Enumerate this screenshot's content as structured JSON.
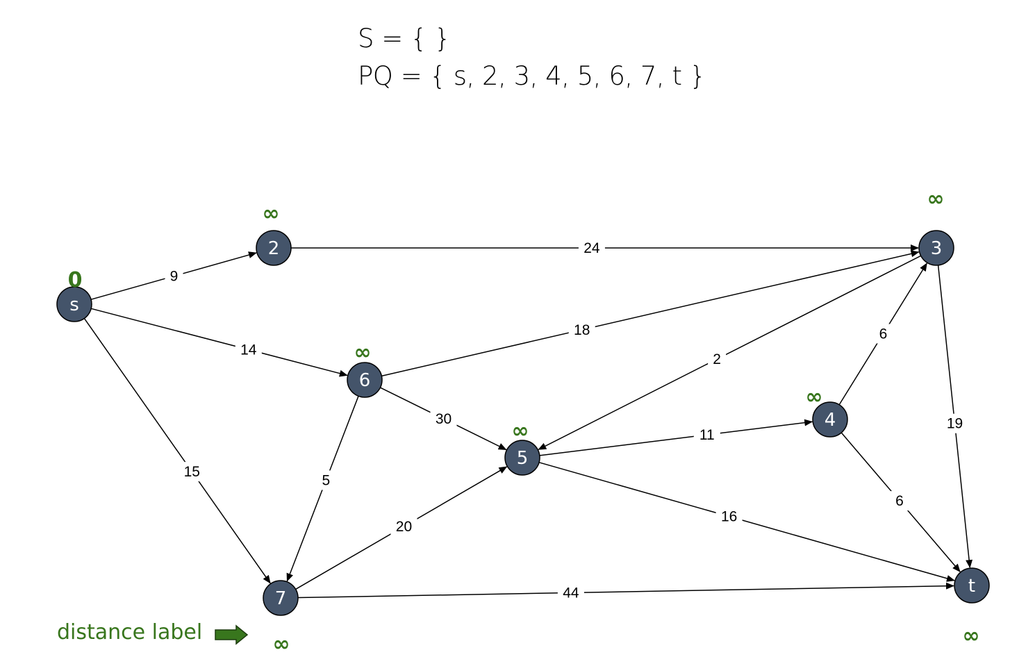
{
  "header": {
    "set_line": "S = {  }",
    "pq_line": "PQ = { s, 2, 3, 4, 5, 6, 7, t }"
  },
  "colors": {
    "node_fill": "#44546a",
    "distance_label": "#38761d",
    "edge": "#000000"
  },
  "nodes": [
    {
      "id": "s",
      "label": "s",
      "distance": "0"
    },
    {
      "id": "2",
      "label": "2",
      "distance": "∞"
    },
    {
      "id": "3",
      "label": "3",
      "distance": "∞"
    },
    {
      "id": "4",
      "label": "4",
      "distance": "∞"
    },
    {
      "id": "5",
      "label": "5",
      "distance": "∞"
    },
    {
      "id": "6",
      "label": "6",
      "distance": "∞"
    },
    {
      "id": "7",
      "label": "7",
      "distance": "∞"
    },
    {
      "id": "t",
      "label": "t",
      "distance": "∞"
    }
  ],
  "edges": [
    {
      "from": "s",
      "to": "2",
      "weight": "9"
    },
    {
      "from": "s",
      "to": "6",
      "weight": "14"
    },
    {
      "from": "s",
      "to": "7",
      "weight": "15"
    },
    {
      "from": "2",
      "to": "3",
      "weight": "24"
    },
    {
      "from": "6",
      "to": "3",
      "weight": "18"
    },
    {
      "from": "6",
      "to": "5",
      "weight": "30"
    },
    {
      "from": "6",
      "to": "7",
      "weight": "5"
    },
    {
      "from": "3",
      "to": "5",
      "weight": "2"
    },
    {
      "from": "3",
      "to": "t",
      "weight": "19"
    },
    {
      "from": "4",
      "to": "3",
      "weight": "6"
    },
    {
      "from": "4",
      "to": "t",
      "weight": "6"
    },
    {
      "from": "5",
      "to": "4",
      "weight": "11"
    },
    {
      "from": "5",
      "to": "t",
      "weight": "16"
    },
    {
      "from": "7",
      "to": "5",
      "weight": "20"
    },
    {
      "from": "7",
      "to": "t",
      "weight": "44"
    }
  ],
  "legend": {
    "label": "distance label"
  }
}
